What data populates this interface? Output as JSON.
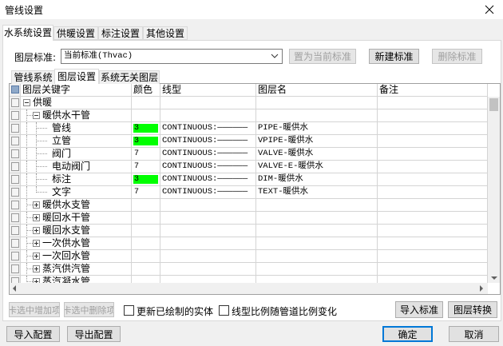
{
  "window": {
    "title": "管线设置"
  },
  "tabs": [
    {
      "label": "水系统设置",
      "active": true
    },
    {
      "label": "供暖设置"
    },
    {
      "label": "标注设置"
    },
    {
      "label": "其他设置"
    }
  ],
  "layer_standard": {
    "label": "图层标准:",
    "value": "当前标准(Thvac)"
  },
  "standard_buttons": [
    {
      "label": "置为当前标准",
      "enabled": false
    },
    {
      "label": "新建标准",
      "enabled": true
    },
    {
      "label": "删除标准",
      "enabled": false
    }
  ],
  "subtabs": [
    {
      "label": "管线系统"
    },
    {
      "label": "图层设置",
      "active": true
    },
    {
      "label": "系统无关图层"
    }
  ],
  "table": {
    "columns": [
      "图层关键字",
      "颜色",
      "线型",
      "图层名",
      "备注"
    ],
    "tree": [
      {
        "label": "供暖",
        "expanded": true,
        "children": [
          {
            "label": "暖供水干管",
            "expanded": true,
            "children": [
              {
                "label": "管线",
                "color": 3,
                "swatch": "#00ff00",
                "linetype": "CONTINUOUS:——————",
                "layer": "PIPE-暖供水"
              },
              {
                "label": "立管",
                "color": 3,
                "swatch": "#00ff00",
                "linetype": "CONTINUOUS:——————",
                "layer": "VPIPE-暖供水"
              },
              {
                "label": "阀门",
                "color": 7,
                "linetype": "CONTINUOUS:——————",
                "layer": "VALVE-暖供水"
              },
              {
                "label": "电动阀门",
                "color": 7,
                "linetype": "CONTINUOUS:——————",
                "layer": "VALVE-E-暖供水"
              },
              {
                "label": "标注",
                "color": 3,
                "swatch": "#00ff00",
                "linetype": "CONTINUOUS:——————",
                "layer": "DIM-暖供水"
              },
              {
                "label": "文字",
                "color": 7,
                "linetype": "CONTINUOUS:——————",
                "layer": "TEXT-暖供水"
              }
            ]
          },
          {
            "label": "暖供水支管",
            "expanded": false
          },
          {
            "label": "暖回水干管",
            "expanded": false
          },
          {
            "label": "暖回水支管",
            "expanded": false
          },
          {
            "label": "一次供水管",
            "expanded": false
          },
          {
            "label": "一次回水管",
            "expanded": false
          },
          {
            "label": "蒸汽供汽管",
            "expanded": false
          },
          {
            "label": "蒸汽凝水管",
            "expanded": false
          }
        ]
      }
    ]
  },
  "row_buttons": [
    {
      "label": "卡选中增加项",
      "enabled": false
    },
    {
      "label": "卡选中删除项",
      "enabled": false
    }
  ],
  "checkboxes": [
    {
      "label": "更新已绘制的实体",
      "checked": false
    },
    {
      "label": "线型比例随管道比例变化",
      "checked": false
    }
  ],
  "tool_buttons": [
    "导入标准",
    "图层转换"
  ],
  "footer_left": [
    "导入配置",
    "导出配置"
  ],
  "footer_right": [
    {
      "label": "确定",
      "default": true
    },
    {
      "label": "取消"
    }
  ]
}
